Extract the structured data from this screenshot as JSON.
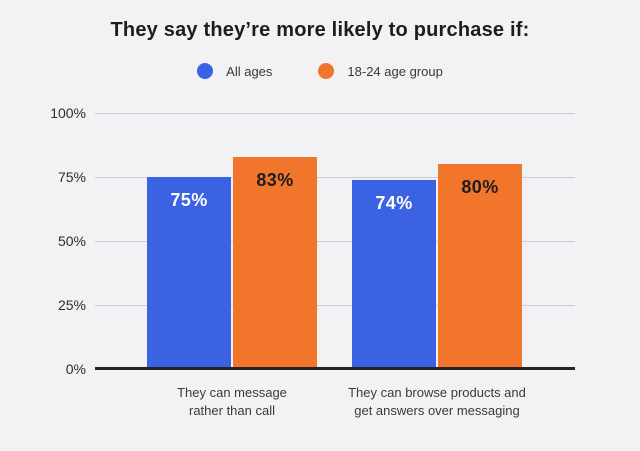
{
  "title": "They say they’re more likely to purchase if:",
  "legend": {
    "items": [
      {
        "label": "All ages",
        "color": "#3a62e2"
      },
      {
        "label": "18-24 age group",
        "color": "#f1752b"
      }
    ]
  },
  "colors": {
    "background": "#f2f2f4",
    "gridline": "#c9ccd4",
    "axis_line": "#232327",
    "title_text": "#1d1d1f",
    "tick_text": "#2c2c2e",
    "category_text": "#3a3a3c"
  },
  "chart_data": {
    "type": "bar",
    "title": "They say they’re more likely to purchase if:",
    "categories": [
      "They can message rather than call",
      "They can browse products and get answers over messaging"
    ],
    "category_lines": [
      [
        "They can message",
        "rather than call"
      ],
      [
        "They can browse products and",
        "get answers over messaging"
      ]
    ],
    "series": [
      {
        "name": "All ages",
        "color": "#3a62e2",
        "label_color": "#ffffff",
        "values": [
          75,
          74
        ]
      },
      {
        "name": "18-24 age group",
        "color": "#f1752b",
        "label_color": "#1d1d1f",
        "values": [
          83,
          80
        ]
      }
    ],
    "value_label_format": "{v}%",
    "yticks": [
      0,
      25,
      50,
      75,
      100
    ],
    "ytick_labels": [
      "0%",
      "25%",
      "50%",
      "75%",
      "100%"
    ],
    "ylim": [
      0,
      100
    ],
    "grid": true,
    "legend_position": "top-center"
  }
}
